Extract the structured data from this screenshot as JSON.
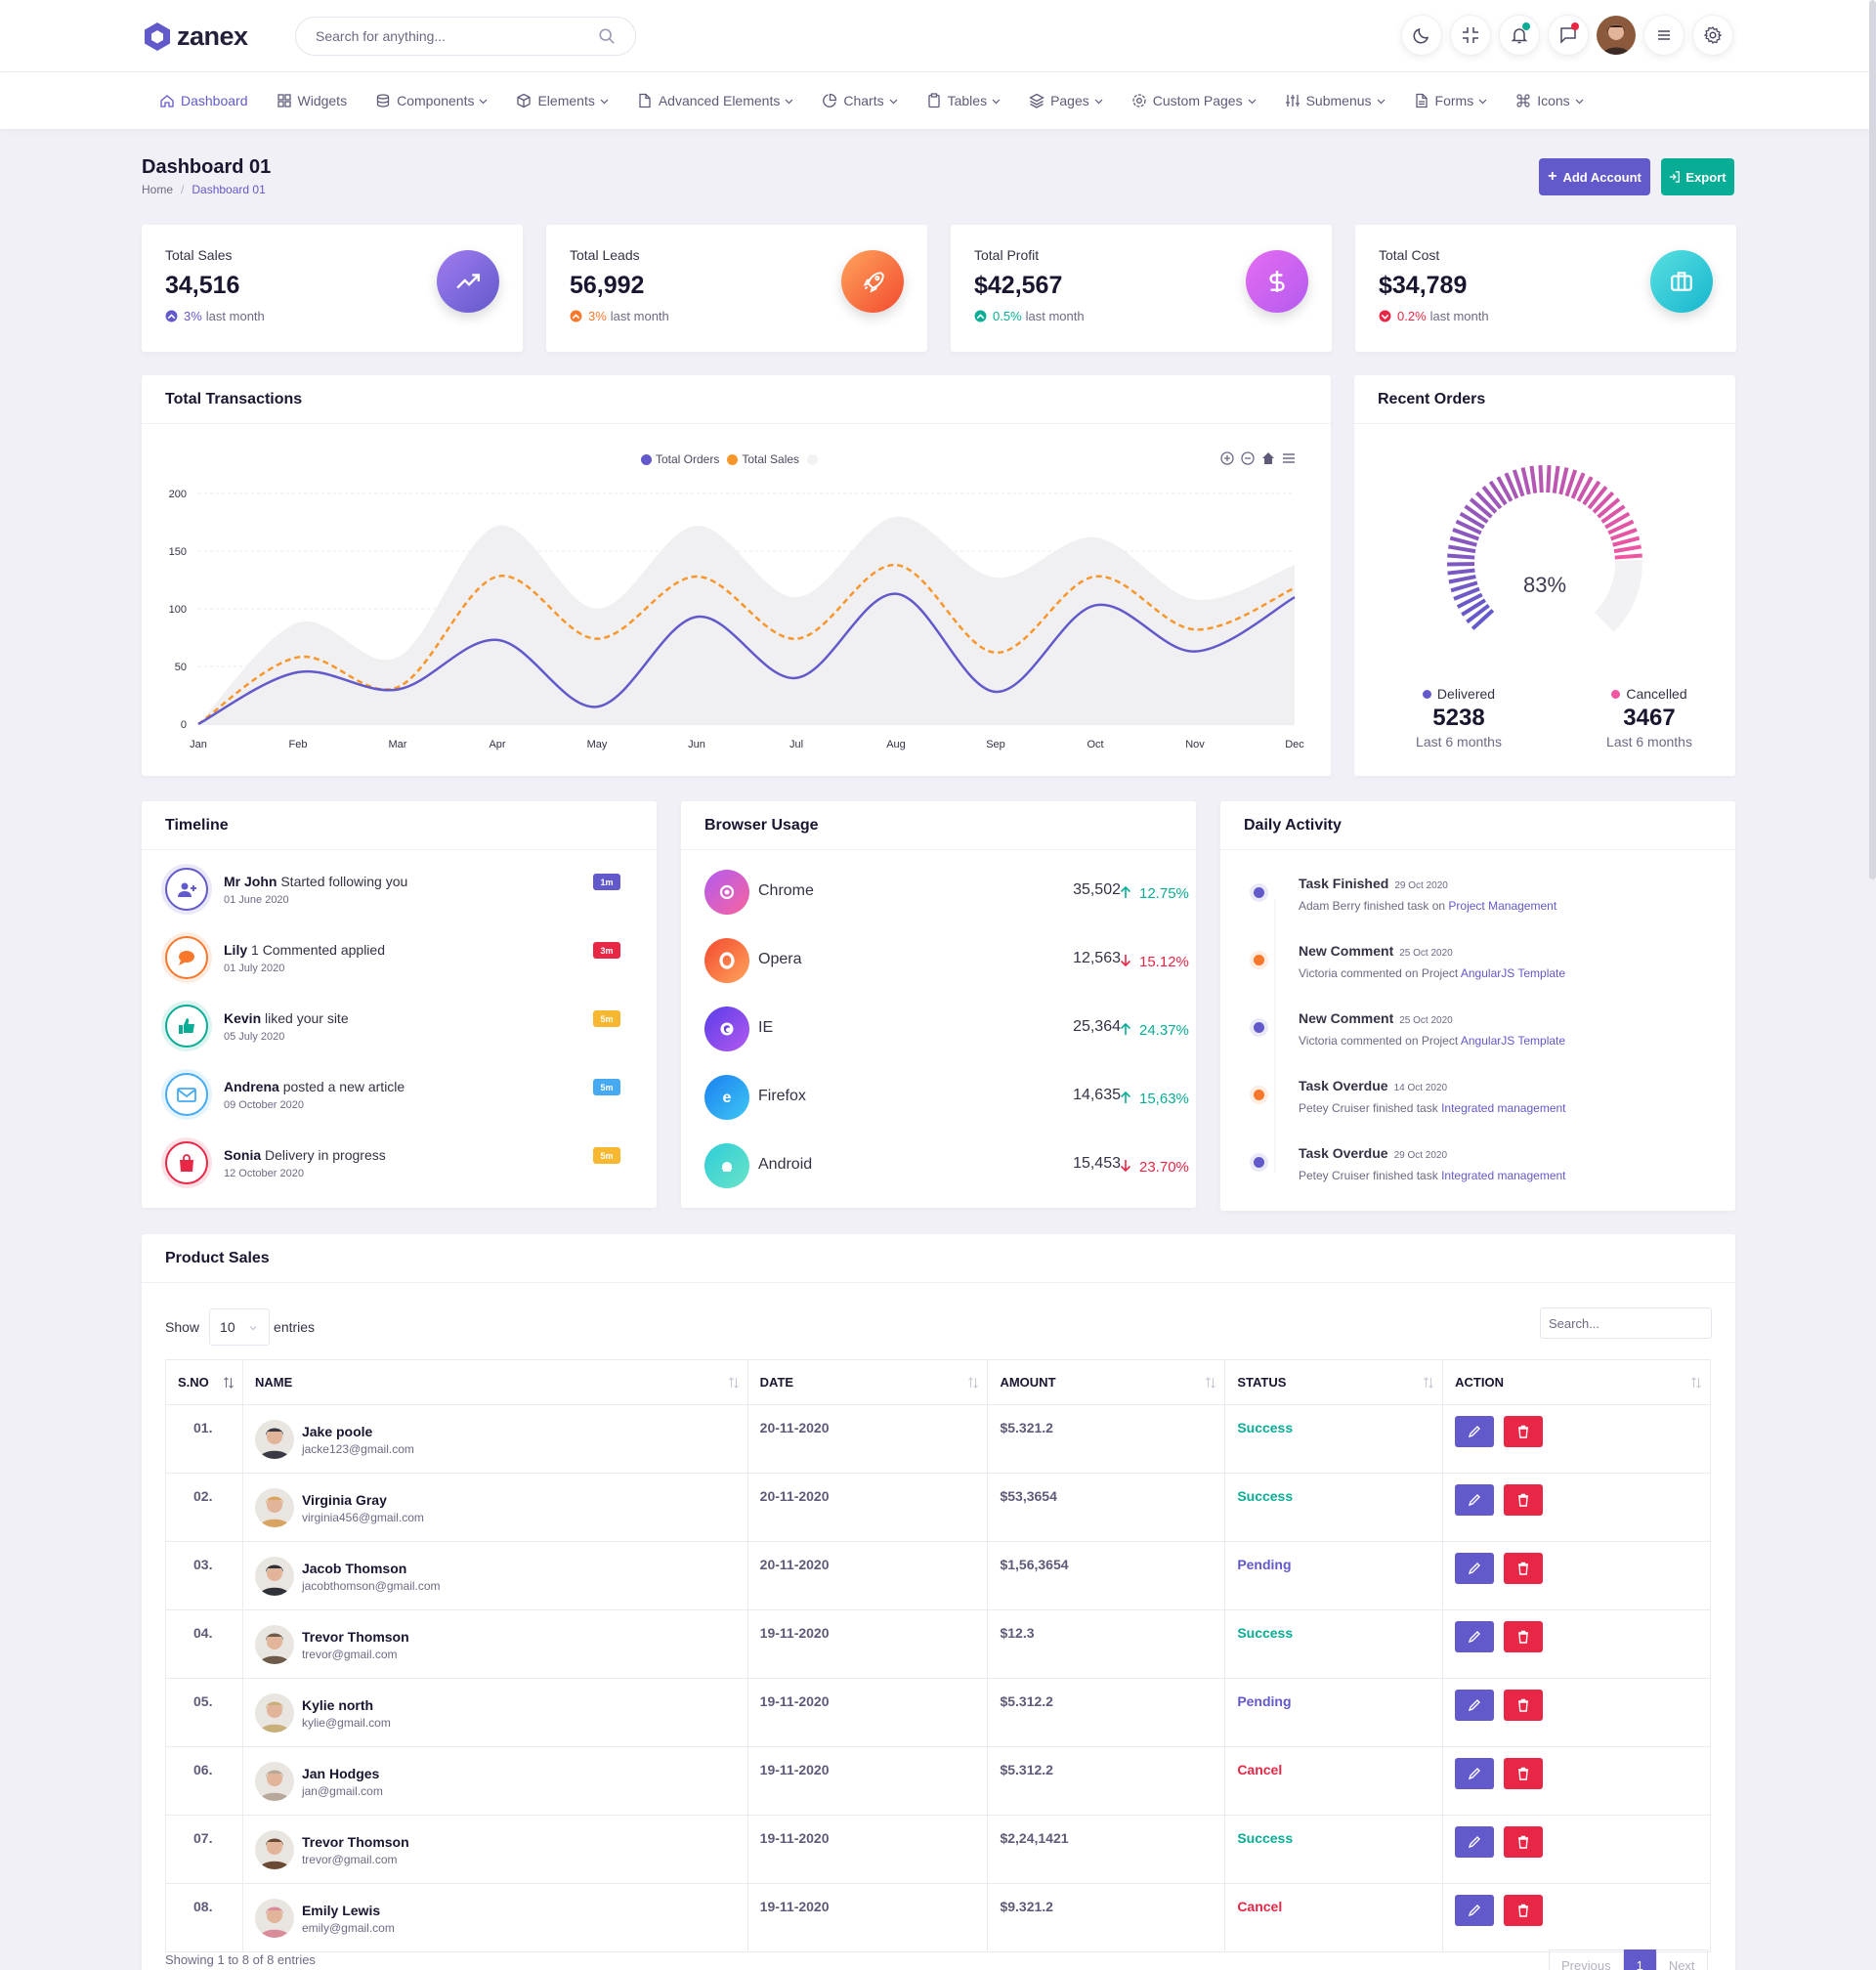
{
  "app": {
    "logo": "zanex"
  },
  "search": {
    "placeholder": "Search for anything..."
  },
  "nav": [
    {
      "label": "Dashboard",
      "icon": "home-icon",
      "active": true
    },
    {
      "label": "Widgets",
      "icon": "grid-icon"
    },
    {
      "label": "Components",
      "icon": "database-icon"
    },
    {
      "label": "Elements",
      "icon": "package-icon"
    },
    {
      "label": "Advanced Elements",
      "icon": "file-icon"
    },
    {
      "label": "Charts",
      "icon": "pie-chart-icon"
    },
    {
      "label": "Tables",
      "icon": "clipboard-icon"
    },
    {
      "label": "Pages",
      "icon": "layers-icon"
    },
    {
      "label": "Custom Pages",
      "icon": "settings-icon"
    },
    {
      "label": "Submenus",
      "icon": "sliders-icon"
    },
    {
      "label": "Forms",
      "icon": "file-text-icon"
    },
    {
      "label": "Icons",
      "icon": "command-icon"
    }
  ],
  "page": {
    "title": "Dashboard 01",
    "breadcrumb": [
      "Home",
      "Dashboard 01"
    ],
    "add_account": "Add Account",
    "export": "Export"
  },
  "stats": [
    {
      "label": "Total Sales",
      "value": "34,516",
      "pct": "3%",
      "suffix": "last month",
      "color": "#6259ca",
      "icon": "trending-up-icon"
    },
    {
      "label": "Total Leads",
      "value": "56,992",
      "pct": "3%",
      "suffix": "last month",
      "color": "#f7772b",
      "icon": "rocket-icon"
    },
    {
      "label": "Total Profit",
      "value": "$42,567",
      "pct": "0.5%",
      "suffix": "last month",
      "color": "#09ad95",
      "icon": "dollar-icon"
    },
    {
      "label": "Total Cost",
      "value": "$34,789",
      "pct": "0.2%",
      "suffix": "last month",
      "color": "#e82646",
      "icon": "briefcase-icon"
    }
  ],
  "transactions": {
    "title": "Total Transactions",
    "legend": [
      "Total Orders",
      "Total Sales"
    ]
  },
  "chart_data": {
    "type": "area",
    "title": "",
    "categories": [
      "Jan",
      "Feb",
      "Mar",
      "Apr",
      "May",
      "Jun",
      "Jul",
      "Aug",
      "Sep",
      "Oct",
      "Nov",
      "Dec"
    ],
    "ylim": [
      0,
      200
    ],
    "yticks": [
      0,
      50,
      100,
      150,
      200
    ],
    "grid": true,
    "legend_position": "top-center",
    "series": [
      {
        "name": "Total Orders",
        "color": "#6259ca",
        "style": "line",
        "values": [
          0,
          45,
          30,
          73,
          15,
          93,
          40,
          113,
          28,
          103,
          63,
          110
        ]
      },
      {
        "name": "Total Sales",
        "color": "#f7962b",
        "style": "dashed",
        "values": [
          0,
          58,
          32,
          128,
          74,
          128,
          74,
          138,
          62,
          128,
          82,
          118
        ]
      },
      {
        "name": "",
        "color": "#f0f0f2",
        "style": "area",
        "values": [
          0,
          88,
          58,
          172,
          100,
          172,
          110,
          180,
          127,
          162,
          108,
          138
        ]
      }
    ]
  },
  "orders": {
    "title": "Recent Orders",
    "percent": "83%",
    "percent_value": 83,
    "delivered": {
      "label": "Delivered",
      "value": "5238",
      "sub": "Last 6 months",
      "color": "#6259ca"
    },
    "cancelled": {
      "label": "Cancelled",
      "value": "3467",
      "sub": "Last 6 months",
      "color": "#f355a0"
    }
  },
  "timeline": {
    "title": "Timeline",
    "items": [
      {
        "name": "Mr John",
        "action": "Started following you",
        "date": "01 June 2020",
        "badge": "1m",
        "color": "#6259ca",
        "badge_color": "#6259ca",
        "icon": "user-plus-icon"
      },
      {
        "name": "Lily",
        "action": "1 Commented applied",
        "date": "01 July 2020",
        "badge": "3m",
        "color": "#f7772b",
        "badge_color": "#e82646",
        "icon": "comment-icon"
      },
      {
        "name": "Kevin",
        "action": "liked your site",
        "date": "05 July 2020",
        "badge": "5m",
        "color": "#09ad95",
        "badge_color": "#f7b731",
        "icon": "thumbs-up-icon"
      },
      {
        "name": "Andrena",
        "action": "posted a new article",
        "date": "09 October 2020",
        "badge": "5m",
        "color": "#45aaf2",
        "badge_color": "#45aaf2",
        "icon": "mail-icon"
      },
      {
        "name": "Sonia",
        "action": "Delivery in progress",
        "date": "12 October 2020",
        "badge": "5m",
        "color": "#e82646",
        "badge_color": "#f7b731",
        "icon": "shopping-bag-icon"
      }
    ]
  },
  "browser": {
    "title": "Browser Usage",
    "items": [
      {
        "name": "Chrome",
        "value": "35,502",
        "pct": "12.75%",
        "up": true,
        "icon": "chrome-icon",
        "grad": [
          "#b35bf0",
          "#f8649e"
        ]
      },
      {
        "name": "Opera",
        "value": "12,563",
        "pct": "15.12%",
        "up": false,
        "icon": "opera-icon",
        "grad": [
          "#f34a2f",
          "#ffa45c"
        ]
      },
      {
        "name": "IE",
        "value": "25,364",
        "pct": "24.37%",
        "up": true,
        "icon": "firefox-icon",
        "grad": [
          "#5a3ce8",
          "#b35bf0"
        ]
      },
      {
        "name": "Firefox",
        "value": "14,635",
        "pct": "15,63%",
        "up": true,
        "icon": "ie-icon",
        "grad": [
          "#1a7ff0",
          "#3ec8f5"
        ]
      },
      {
        "name": "Android",
        "value": "15,453",
        "pct": "23.70%",
        "up": false,
        "icon": "android-icon",
        "grad": [
          "#2dcdd8",
          "#6ae3c8"
        ]
      }
    ]
  },
  "activity": {
    "title": "Daily Activity",
    "items": [
      {
        "title": "Task Finished",
        "date": "29 Oct 2020",
        "desc": "Adam Berry finished task on",
        "link": "Project Management",
        "color": "#6259ca"
      },
      {
        "title": "New Comment",
        "date": "25 Oct 2020",
        "desc": "Victoria commented on Project",
        "link": "AngularJS Template",
        "color": "#f7772b"
      },
      {
        "title": "New Comment",
        "date": "25 Oct 2020",
        "desc": "Victoria commented on Project",
        "link": "AngularJS Template",
        "color": "#6259ca"
      },
      {
        "title": "Task Overdue",
        "date": "14 Oct 2020",
        "desc": "Petey Cruiser finished task",
        "link": "Integrated management",
        "color": "#f7772b"
      },
      {
        "title": "Task Overdue",
        "date": "29 Oct 2020",
        "desc": "Petey Cruiser finished task",
        "link": "Integrated management",
        "color": "#6259ca"
      }
    ]
  },
  "sales": {
    "title": "Product Sales",
    "show": "Show",
    "entries_value": "10",
    "entries": "entries",
    "search_placeholder": "Search...",
    "headers": [
      "S.NO",
      "NAME",
      "DATE",
      "AMOUNT",
      "STATUS",
      "ACTION"
    ],
    "rows": [
      {
        "no": "01.",
        "name": "Jake poole",
        "email": "jacke123@gmail.com",
        "date": "20-11-2020",
        "amount": "$5.321.2",
        "status": "Success",
        "av": "#3a3a44"
      },
      {
        "no": "02.",
        "name": "Virginia Gray",
        "email": "virginia456@gmail.com",
        "date": "20-11-2020",
        "amount": "$53,3654",
        "status": "Success",
        "av": "#d9a460"
      },
      {
        "no": "03.",
        "name": "Jacob Thomson",
        "email": "jacobthomson@gmail.com",
        "date": "20-11-2020",
        "amount": "$1,56,3654",
        "status": "Pending",
        "av": "#2f3238"
      },
      {
        "no": "04.",
        "name": "Trevor Thomson",
        "email": "trevor@gmail.com",
        "date": "19-11-2020",
        "amount": "$12.3",
        "status": "Success",
        "av": "#6e5a48"
      },
      {
        "no": "05.",
        "name": "Kylie north",
        "email": "kylie@gmail.com",
        "date": "19-11-2020",
        "amount": "$5.312.2",
        "status": "Pending",
        "av": "#c9b07a"
      },
      {
        "no": "06.",
        "name": "Jan Hodges",
        "email": "jan@gmail.com",
        "date": "19-11-2020",
        "amount": "$5.312.2",
        "status": "Cancel",
        "av": "#b7a89a"
      },
      {
        "no": "07.",
        "name": "Trevor Thomson",
        "email": "trevor@gmail.com",
        "date": "19-11-2020",
        "amount": "$2,24,1421",
        "status": "Success",
        "av": "#6b4a35"
      },
      {
        "no": "08.",
        "name": "Emily Lewis",
        "email": "emily@gmail.com",
        "date": "19-11-2020",
        "amount": "$9.321.2",
        "status": "Cancel",
        "av": "#d98c9a"
      }
    ],
    "status_colors": {
      "Success": "#09ad95",
      "Pending": "#6259ca",
      "Cancel": "#e82646"
    },
    "pagination": {
      "info": "Showing 1 to 8 of 8 entries",
      "prev": "Previous",
      "page": "1",
      "next": "Next"
    }
  }
}
